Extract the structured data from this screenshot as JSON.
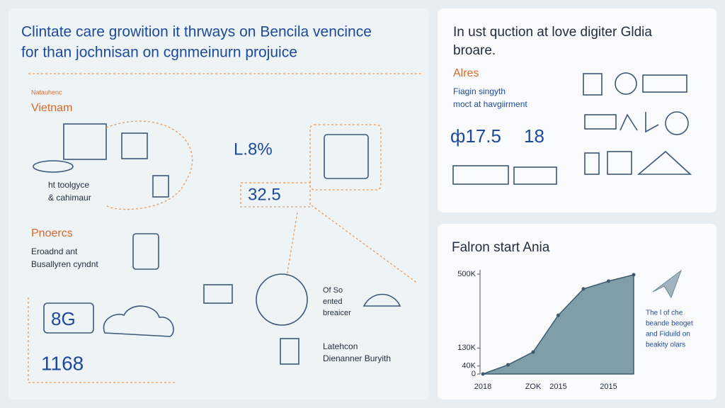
{
  "header": {
    "title_lines": [
      "Clintate care growition it thrways on Bencila vencince",
      "for than jochnisan on cgnmeinurn projuice"
    ]
  },
  "left_panel": {
    "kicker": "Natauhenc",
    "region": "Vietnam",
    "caption_1": [
      "ht toolgyce",
      "& cahimaur"
    ],
    "stat_1": "L.8%",
    "stat_2": "32.5",
    "section": "Pnoercs",
    "section_text": [
      "Eroadnd ant",
      "Busallyren cyndnt"
    ],
    "badge": "8G",
    "big_number": "1168",
    "note_1": [
      "Of So",
      "ented",
      "breaicer"
    ],
    "note_2": [
      "Latehcon",
      "Dienanner Buryith"
    ]
  },
  "top_panel": {
    "title_lines": [
      "In ust quction at love digiter Gldia",
      "broare."
    ],
    "label": "Alres",
    "text": [
      "Fiagin singyth",
      "moct at havgiirment"
    ],
    "stat_1": "ф17.5",
    "stat_2": "18"
  },
  "chart_data": {
    "type": "area",
    "title": "Falron start Ania",
    "categories": [
      "2018",
      null,
      "ZOK",
      "2015",
      null,
      "2015",
      null
    ],
    "values": [
      0,
      46000,
      110000,
      294000,
      426000,
      465000,
      497000
    ],
    "color": "#7f9ea8",
    "ylim": [
      0,
      500000
    ],
    "yticks": [
      0,
      {
        "value": 40000,
        "label": "40K"
      },
      {
        "value": 130000,
        "label": "130K"
      },
      {
        "value": 500000,
        "label": "500K"
      }
    ],
    "notes": [
      "The l of che",
      "beande beoget",
      "and Fiduild on",
      "beakity olars"
    ]
  }
}
